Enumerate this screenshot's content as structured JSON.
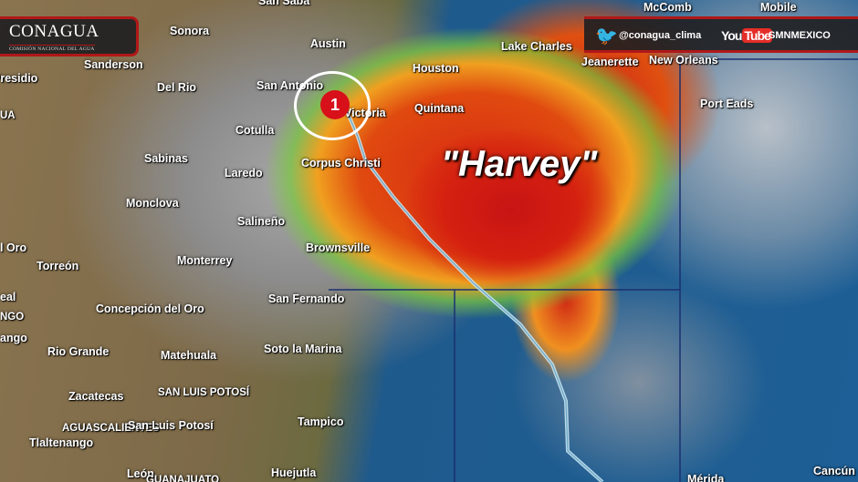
{
  "branding": {
    "logo_name": "CONAGUA",
    "logo_sub": "COMISIÓN NACIONAL DEL AGUA"
  },
  "social": {
    "twitter_icon": "twitter-bird-icon",
    "twitter_handle": "@conagua_clima",
    "youtube_you": "You",
    "youtube_tube": "Tube",
    "youtube_channel": "SMNMEXICO"
  },
  "storm": {
    "name": "\"Harvey\"",
    "category": "1",
    "icon": "hurricane-icon",
    "track_color": "#b8e0f0"
  },
  "labels": [
    "San Saba",
    "Sonora",
    "Sanderson",
    "Presidio",
    "Del Rio",
    "Austin",
    "San Antonio",
    "Houston",
    "Lake Charles",
    "Jeanerette",
    "New Orleans",
    "Port Eads",
    "Quintana",
    "Victoria",
    "Cotulla",
    "Sabinas",
    "Laredo",
    "Corpus Christi",
    "Monclova",
    "Salineño",
    "Brownsville",
    "l Oro",
    "Torreón",
    "Monterrey",
    "eal",
    "NGO",
    "ango",
    "Concepción del Oro",
    "San Fernando",
    "Rio Grande",
    "Matehuala",
    "Soto la Marina",
    "Zacatecas",
    "SAN LUIS POTOSÍ",
    "Tampico",
    "AGUASCALIENTES",
    "San Luis Potosí",
    "Tlaltenango",
    "León",
    "GUANAJUATO",
    "Huejutla",
    "Mérida",
    "Cancún",
    "UA",
    "McComb",
    "Mobile"
  ]
}
